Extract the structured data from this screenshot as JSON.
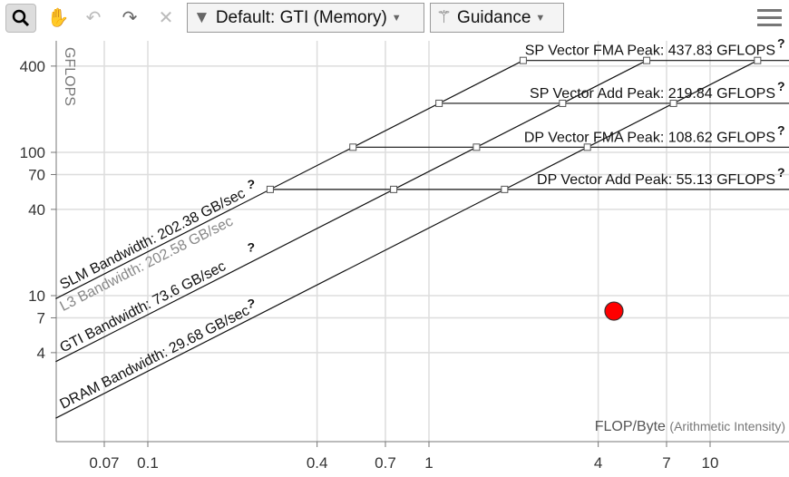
{
  "toolbar": {
    "filter_label": "Default: GTI (Memory)",
    "guidance_label": "Guidance",
    "icons": [
      "magnifier-icon",
      "hand-icon",
      "undo-icon",
      "redo-icon",
      "close-icon",
      "filter-icon",
      "magic-wand-icon",
      "hamburger-menu-icon"
    ]
  },
  "chart_data": {
    "type": "roofline",
    "xlabel": "FLOP/Byte",
    "xlabel_suffix": "(Arithmetic Intensity)",
    "ylabel": "GFLOPS",
    "x_scale": "log",
    "y_scale": "log",
    "xlim": [
      0.047,
      19
    ],
    "ylim": [
      0.96,
      600
    ],
    "x_ticks": [
      0.07,
      0.1,
      0.4,
      0.7,
      1,
      4,
      7,
      10
    ],
    "x_tick_labels": [
      "0.07",
      "0.1",
      "0.4",
      "0.7",
      "1",
      "4",
      "7",
      "10"
    ],
    "y_ticks": [
      4,
      7,
      10,
      40,
      70,
      100,
      400
    ],
    "y_tick_labels": [
      "4",
      "7",
      "10",
      "40",
      "70",
      "100",
      "400"
    ],
    "grid": true,
    "compute_roofs": [
      {
        "label": "SP Vector FMA Peak: 437.83 GFLOPS",
        "value": 437.83
      },
      {
        "label": "SP Vector Add Peak: 219.84 GFLOPS",
        "value": 219.84
      },
      {
        "label": "DP Vector FMA Peak: 108.62 GFLOPS",
        "value": 108.62
      },
      {
        "label": "DP Vector Add Peak: 55.13 GFLOPS",
        "value": 55.13
      }
    ],
    "memory_roofs": [
      {
        "label": "SLM Bandwidth: 202.38 GB/sec",
        "value": 202.38,
        "color": "#111111"
      },
      {
        "label": "L3 Bandwidth: 202.58 GB/sec",
        "value": 202.58,
        "color": "#888888"
      },
      {
        "label": "GTI Bandwidth: 73.6 GB/sec",
        "value": 73.6,
        "color": "#111111"
      },
      {
        "label": "DRAM Bandwidth: 29.68 GB/sec",
        "value": 29.68,
        "color": "#111111"
      }
    ],
    "points": [
      {
        "x": 4.55,
        "y": 7.8,
        "color": "#ff0000"
      }
    ],
    "help_mark": "?"
  }
}
